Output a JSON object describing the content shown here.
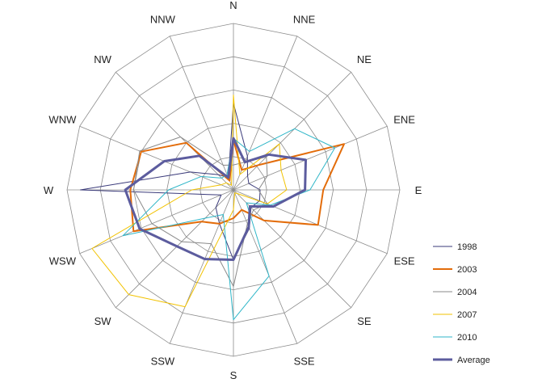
{
  "chart_data": {
    "type": "radar",
    "directions": [
      "N",
      "NNE",
      "NE",
      "ENE",
      "E",
      "ESE",
      "SE",
      "SSE",
      "S",
      "SSW",
      "SW",
      "WSW",
      "W",
      "WNW",
      "NW",
      "NNW"
    ],
    "rmax": 10,
    "rings": 5,
    "grid": true,
    "legend_position": "right",
    "series": [
      {
        "name": "1998",
        "color": "#3a3a7a",
        "width": 1,
        "values": [
          5.2,
          2.2,
          1.2,
          1.0,
          1.6,
          1.7,
          1.5,
          2.5,
          4.2,
          2.2,
          1.5,
          0.8,
          9.2,
          2.8,
          1.3,
          0.8
        ]
      },
      {
        "name": "2003",
        "color": "#e36c0a",
        "width": 2,
        "values": [
          3.0,
          1.3,
          2.1,
          7.2,
          5.4,
          5.5,
          2.6,
          1.3,
          1.7,
          2.2,
          2.7,
          6.5,
          6.2,
          6.0,
          4.0,
          0.6
        ]
      },
      {
        "name": "2004",
        "color": "#8a8a8a",
        "width": 1,
        "values": [
          1.5,
          1.8,
          2.8,
          2.2,
          1.5,
          2.2,
          1.7,
          2.2,
          5.8,
          3.5,
          4.4,
          5.3,
          6.0,
          6.1,
          4.5,
          1.6
        ]
      },
      {
        "name": "2007",
        "color": "#f2c200",
        "width": 1,
        "values": [
          5.7,
          1.0,
          3.9,
          3.1,
          3.2,
          2.2,
          0.3,
          0.2,
          1.2,
          7.6,
          8.9,
          9.2,
          2.5,
          0.8,
          0.6,
          0.3
        ]
      },
      {
        "name": "2010",
        "color": "#2fb6c8",
        "width": 1,
        "values": [
          3.1,
          2.5,
          5.2,
          6.6,
          4.6,
          2.4,
          1.1,
          5.6,
          7.8,
          1.6,
          2.4,
          7.2,
          3.9,
          2.1,
          1.0,
          1.0
        ]
      },
      {
        "name": "Average",
        "color": "#5c5c9e",
        "width": 3,
        "values": [
          3.1,
          1.8,
          3.0,
          4.7,
          4.3,
          2.6,
          1.4,
          2.4,
          4.2,
          4.5,
          4.8,
          6.1,
          6.5,
          4.5,
          2.9,
          0.8
        ]
      }
    ]
  }
}
